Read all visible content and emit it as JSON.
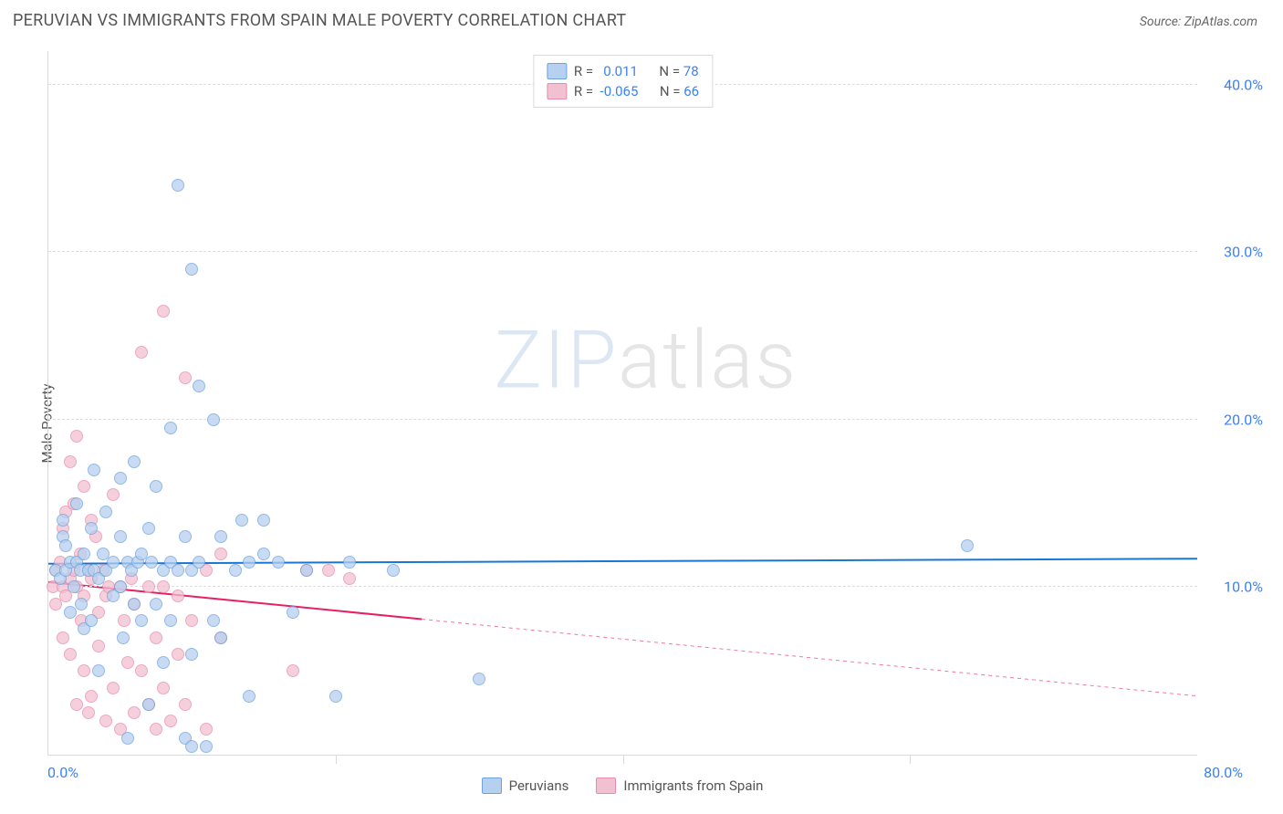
{
  "header": {
    "title": "PERUVIAN VS IMMIGRANTS FROM SPAIN MALE POVERTY CORRELATION CHART",
    "source_label": "Source:",
    "source_name": "ZipAtlas.com"
  },
  "watermark": {
    "part1": "ZIP",
    "part2": "atlas"
  },
  "chart": {
    "type": "scatter",
    "ylabel": "Male Poverty",
    "background_color": "#ffffff",
    "grid_color": "#dcdcdc",
    "axis_color": "#d9d9d9",
    "label_color": "#3b82f6",
    "text_color": "#555555",
    "xlim": [
      0,
      80
    ],
    "ylim": [
      0,
      42
    ],
    "xticks": [
      0,
      20,
      40,
      60,
      80
    ],
    "xtick_labels": [
      "0.0%",
      "",
      "",
      "",
      "80.0%"
    ],
    "yticks": [
      10,
      20,
      30,
      40
    ],
    "ytick_labels": [
      "10.0%",
      "20.0%",
      "30.0%",
      "40.0%"
    ],
    "marker_size": 14,
    "line_width": 2,
    "series": [
      {
        "name": "Peruvians",
        "color_fill": "#b6d0ef",
        "color_stroke": "#6ea3e0",
        "line_color": "#1976d2",
        "R": "0.011",
        "N": "78",
        "regression": {
          "x1": 0,
          "y1": 11.4,
          "x2": 80,
          "y2": 11.7,
          "solid_until_x": 80
        },
        "points": [
          [
            0.5,
            11
          ],
          [
            0.8,
            10.5
          ],
          [
            1,
            13
          ],
          [
            1,
            14
          ],
          [
            1.2,
            11
          ],
          [
            1.2,
            12.5
          ],
          [
            1.5,
            11.5
          ],
          [
            1.5,
            8.5
          ],
          [
            1.8,
            10
          ],
          [
            2,
            11.5
          ],
          [
            2,
            15
          ],
          [
            2.2,
            11
          ],
          [
            2.3,
            9
          ],
          [
            2.5,
            12
          ],
          [
            2.5,
            7.5
          ],
          [
            2.8,
            11
          ],
          [
            3,
            13.5
          ],
          [
            3,
            8
          ],
          [
            3.2,
            11
          ],
          [
            3.2,
            17
          ],
          [
            3.5,
            10.5
          ],
          [
            3.5,
            5
          ],
          [
            3.8,
            12
          ],
          [
            4,
            11
          ],
          [
            4,
            14.5
          ],
          [
            4.5,
            9.5
          ],
          [
            4.5,
            11.5
          ],
          [
            5,
            13
          ],
          [
            5,
            16.5
          ],
          [
            5,
            10
          ],
          [
            5.2,
            7
          ],
          [
            5.5,
            11.5
          ],
          [
            5.5,
            1
          ],
          [
            5.8,
            11
          ],
          [
            6,
            17.5
          ],
          [
            6,
            9
          ],
          [
            6.2,
            11.5
          ],
          [
            6.5,
            8
          ],
          [
            6.5,
            12
          ],
          [
            7,
            13.5
          ],
          [
            7,
            3
          ],
          [
            7.2,
            11.5
          ],
          [
            7.5,
            9
          ],
          [
            7.5,
            16
          ],
          [
            8,
            11
          ],
          [
            8,
            5.5
          ],
          [
            8.5,
            19.5
          ],
          [
            8.5,
            11.5
          ],
          [
            8.5,
            8
          ],
          [
            9,
            34
          ],
          [
            9,
            11
          ],
          [
            9.5,
            1
          ],
          [
            9.5,
            13
          ],
          [
            10,
            11
          ],
          [
            10,
            29
          ],
          [
            10,
            6
          ],
          [
            10.5,
            22
          ],
          [
            10.5,
            11.5
          ],
          [
            11,
            0.5
          ],
          [
            11.5,
            8
          ],
          [
            11.5,
            20
          ],
          [
            12,
            13
          ],
          [
            12,
            7
          ],
          [
            13,
            11
          ],
          [
            13.5,
            14
          ],
          [
            14,
            11.5
          ],
          [
            14,
            3.5
          ],
          [
            15,
            14
          ],
          [
            15,
            12
          ],
          [
            16,
            11.5
          ],
          [
            17,
            8.5
          ],
          [
            18,
            11
          ],
          [
            20,
            3.5
          ],
          [
            21,
            11.5
          ],
          [
            24,
            11
          ],
          [
            30,
            4.5
          ],
          [
            64,
            12.5
          ],
          [
            10,
            0.5
          ]
        ]
      },
      {
        "name": "Immigrants from Spain",
        "color_fill": "#f2c1d1",
        "color_stroke": "#e88ca9",
        "line_color": "#e91e63",
        "R": "-0.065",
        "N": "66",
        "regression": {
          "x1": 0,
          "y1": 10.3,
          "x2": 80,
          "y2": 3.5,
          "solid_until_x": 26
        },
        "points": [
          [
            0.3,
            10
          ],
          [
            0.5,
            11
          ],
          [
            0.5,
            9
          ],
          [
            0.8,
            11.5
          ],
          [
            1,
            10
          ],
          [
            1,
            13.5
          ],
          [
            1,
            7
          ],
          [
            1.2,
            14.5
          ],
          [
            1.2,
            9.5
          ],
          [
            1.5,
            10.5
          ],
          [
            1.5,
            17.5
          ],
          [
            1.5,
            6
          ],
          [
            1.8,
            15
          ],
          [
            1.8,
            11
          ],
          [
            2,
            10
          ],
          [
            2,
            19
          ],
          [
            2,
            3
          ],
          [
            2.2,
            12
          ],
          [
            2.3,
            8
          ],
          [
            2.5,
            9.5
          ],
          [
            2.5,
            16
          ],
          [
            2.5,
            5
          ],
          [
            2.8,
            11
          ],
          [
            2.8,
            2.5
          ],
          [
            3,
            10.5
          ],
          [
            3,
            14
          ],
          [
            3,
            3.5
          ],
          [
            3.3,
            13
          ],
          [
            3.5,
            8.5
          ],
          [
            3.5,
            6.5
          ],
          [
            3.8,
            11
          ],
          [
            4,
            9.5
          ],
          [
            4,
            2
          ],
          [
            4.2,
            10
          ],
          [
            4.5,
            15.5
          ],
          [
            4.5,
            4
          ],
          [
            5,
            10
          ],
          [
            5,
            1.5
          ],
          [
            5.3,
            8
          ],
          [
            5.5,
            5.5
          ],
          [
            5.8,
            10.5
          ],
          [
            6,
            2.5
          ],
          [
            6,
            9
          ],
          [
            6.5,
            24
          ],
          [
            6.5,
            5
          ],
          [
            7,
            10
          ],
          [
            7,
            3
          ],
          [
            7.5,
            7
          ],
          [
            7.5,
            1.5
          ],
          [
            8,
            10
          ],
          [
            8,
            26.5
          ],
          [
            8,
            4
          ],
          [
            8.5,
            2
          ],
          [
            9,
            9.5
          ],
          [
            9,
            6
          ],
          [
            9.5,
            3
          ],
          [
            9.5,
            22.5
          ],
          [
            10,
            8
          ],
          [
            11,
            1.5
          ],
          [
            11,
            11
          ],
          [
            12,
            12
          ],
          [
            12,
            7
          ],
          [
            17,
            5
          ],
          [
            18,
            11
          ],
          [
            19.5,
            11
          ],
          [
            21,
            10.5
          ]
        ]
      }
    ],
    "legend_top_labels": {
      "R": "R =",
      "N": "N ="
    },
    "legend_bottom": [
      "Peruvians",
      "Immigrants from Spain"
    ]
  }
}
